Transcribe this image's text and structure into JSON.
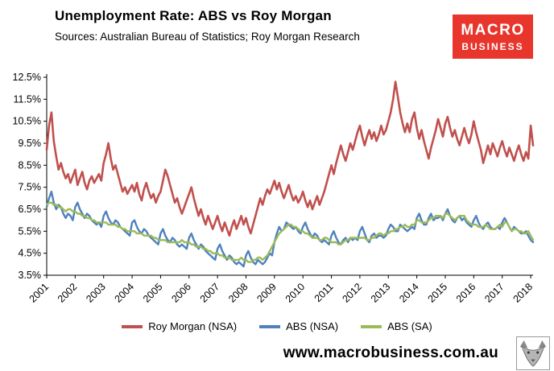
{
  "header": {
    "title": "Unemployment Rate: ABS vs Roy Morgan",
    "sources": "Sources: Australian Bureau of Statistics; Roy Morgan Research"
  },
  "logo": {
    "line1": "MACRO",
    "line2": "BUSINESS",
    "bg_color": "#e8362d",
    "text_color": "#ffffff"
  },
  "footer": {
    "url": "www.macrobusiness.com.au"
  },
  "chart_data": {
    "type": "line",
    "title": "Unemployment Rate: ABS vs Roy Morgan",
    "background": "#ffffff",
    "grid": false,
    "legend_position": "bottom",
    "ylim": [
      3.5,
      12.5
    ],
    "y_tick_values": [
      3.5,
      4.5,
      5.5,
      6.5,
      7.5,
      8.5,
      9.5,
      10.5,
      11.5,
      12.5
    ],
    "y_tick_labels": [
      "3.5%",
      "4.5%",
      "5.5%",
      "6.5%",
      "7.5%",
      "8.5%",
      "9.5%",
      "10.5%",
      "11.5%",
      "12.5%"
    ],
    "x_start_year": 2001,
    "x_months_per_point": 1,
    "x_tick_years": [
      2001,
      2002,
      2003,
      2004,
      2005,
      2006,
      2007,
      2008,
      2009,
      2010,
      2011,
      2012,
      2013,
      2014,
      2015,
      2016,
      2017,
      2018
    ],
    "series": [
      {
        "name": "Roy Morgan (NSA)",
        "color": "#c0504d",
        "values": [
          9.2,
          10.3,
          10.9,
          9.6,
          8.9,
          8.3,
          8.6,
          8.2,
          7.9,
          8.1,
          7.7,
          8.0,
          8.3,
          7.6,
          7.9,
          8.2,
          7.7,
          7.4,
          7.8,
          8.0,
          7.7,
          7.9,
          8.1,
          7.8,
          8.6,
          9.0,
          9.5,
          8.8,
          8.3,
          8.5,
          8.1,
          7.7,
          7.3,
          7.5,
          7.2,
          7.4,
          7.6,
          7.3,
          7.7,
          7.2,
          6.9,
          7.4,
          7.7,
          7.3,
          7.0,
          7.2,
          6.8,
          7.1,
          7.3,
          7.8,
          8.3,
          8.0,
          7.6,
          7.2,
          6.8,
          7.0,
          6.6,
          6.3,
          6.6,
          6.9,
          7.2,
          7.5,
          7.0,
          6.6,
          6.2,
          6.5,
          6.1,
          5.8,
          6.2,
          5.9,
          5.6,
          5.9,
          6.2,
          5.8,
          5.5,
          5.9,
          5.6,
          5.3,
          5.7,
          6.0,
          5.6,
          5.9,
          6.2,
          5.8,
          6.1,
          5.7,
          5.4,
          5.8,
          6.2,
          6.6,
          7.0,
          6.7,
          7.1,
          7.4,
          7.2,
          7.5,
          7.8,
          7.4,
          7.7,
          7.3,
          7.0,
          7.3,
          7.6,
          7.2,
          6.9,
          7.1,
          6.8,
          7.0,
          7.3,
          6.9,
          6.6,
          6.9,
          6.5,
          6.8,
          7.1,
          6.7,
          7.0,
          7.3,
          7.7,
          8.1,
          8.5,
          8.1,
          8.6,
          9.0,
          9.4,
          9.0,
          8.7,
          9.1,
          9.5,
          9.2,
          9.6,
          10.0,
          10.3,
          9.8,
          9.4,
          9.8,
          10.1,
          9.7,
          10.0,
          9.6,
          9.9,
          10.3,
          9.9,
          10.1,
          10.5,
          10.9,
          11.5,
          12.3,
          11.6,
          10.9,
          10.4,
          10.0,
          10.4,
          10.0,
          10.6,
          10.9,
          10.2,
          9.7,
          10.1,
          9.6,
          9.2,
          8.8,
          9.3,
          9.7,
          10.1,
          10.6,
          10.2,
          9.8,
          10.4,
          10.7,
          10.2,
          9.8,
          10.1,
          9.7,
          9.4,
          9.8,
          10.2,
          9.8,
          9.5,
          9.9,
          10.5,
          10.0,
          9.6,
          9.2,
          8.6,
          9.0,
          9.4,
          9.0,
          9.5,
          9.2,
          8.9,
          9.3,
          9.6,
          9.2,
          8.9,
          9.3,
          9.0,
          8.7,
          9.1,
          9.4,
          9.0,
          8.7,
          9.1,
          8.8,
          10.3,
          9.4
        ]
      },
      {
        "name": "ABS (NSA)",
        "color": "#4f81bd",
        "values": [
          6.6,
          7.0,
          7.3,
          6.8,
          6.5,
          6.7,
          6.6,
          6.3,
          6.1,
          6.3,
          6.2,
          6.0,
          6.6,
          6.8,
          6.5,
          6.3,
          6.1,
          6.3,
          6.2,
          6.0,
          5.9,
          5.8,
          5.9,
          5.7,
          6.2,
          6.4,
          6.1,
          5.9,
          5.8,
          6.0,
          5.9,
          5.7,
          5.6,
          5.5,
          5.4,
          5.3,
          5.9,
          6.0,
          5.7,
          5.5,
          5.4,
          5.6,
          5.5,
          5.3,
          5.2,
          5.1,
          5.0,
          4.9,
          5.4,
          5.6,
          5.3,
          5.1,
          5.0,
          5.2,
          5.1,
          4.9,
          4.8,
          4.9,
          4.8,
          4.7,
          5.2,
          5.4,
          5.1,
          4.9,
          4.7,
          4.9,
          4.8,
          4.6,
          4.5,
          4.4,
          4.3,
          4.2,
          4.7,
          4.9,
          4.6,
          4.4,
          4.2,
          4.4,
          4.3,
          4.1,
          4.0,
          4.1,
          4.0,
          3.9,
          4.4,
          4.6,
          4.3,
          4.1,
          4.0,
          4.2,
          4.1,
          4.0,
          4.1,
          4.3,
          4.5,
          4.4,
          5.0,
          5.4,
          5.7,
          5.5,
          5.6,
          5.9,
          5.8,
          5.7,
          5.6,
          5.7,
          5.5,
          5.4,
          5.7,
          5.9,
          5.6,
          5.4,
          5.2,
          5.4,
          5.3,
          5.1,
          5.0,
          5.1,
          5.0,
          4.9,
          5.3,
          5.5,
          5.2,
          5.0,
          4.9,
          5.1,
          5.2,
          5.0,
          5.2,
          5.1,
          5.2,
          5.1,
          5.5,
          5.7,
          5.4,
          5.1,
          5.0,
          5.3,
          5.4,
          5.2,
          5.3,
          5.3,
          5.2,
          5.3,
          5.6,
          5.8,
          5.7,
          5.5,
          5.5,
          5.8,
          5.7,
          5.6,
          5.5,
          5.6,
          5.7,
          5.6,
          6.1,
          6.3,
          6.0,
          5.8,
          5.8,
          6.1,
          6.3,
          6.0,
          6.1,
          6.1,
          6.2,
          6.0,
          6.3,
          6.5,
          6.2,
          6.0,
          5.9,
          6.1,
          6.2,
          6.0,
          6.1,
          5.9,
          5.8,
          5.7,
          6.0,
          6.2,
          5.9,
          5.7,
          5.6,
          5.8,
          5.9,
          5.7,
          5.6,
          5.6,
          5.7,
          5.6,
          5.9,
          6.1,
          5.9,
          5.7,
          5.5,
          5.7,
          5.6,
          5.5,
          5.4,
          5.4,
          5.5,
          5.3,
          5.1,
          5.0
        ]
      },
      {
        "name": "ABS (SA)",
        "color": "#9bbb59",
        "values": [
          6.7,
          6.8,
          6.8,
          6.7,
          6.7,
          6.6,
          6.6,
          6.5,
          6.4,
          6.5,
          6.5,
          6.4,
          6.4,
          6.3,
          6.3,
          6.2,
          6.2,
          6.1,
          6.1,
          6.0,
          6.0,
          5.9,
          5.9,
          5.9,
          5.9,
          5.9,
          5.8,
          5.8,
          5.8,
          5.8,
          5.7,
          5.7,
          5.6,
          5.6,
          5.5,
          5.5,
          5.5,
          5.5,
          5.4,
          5.4,
          5.4,
          5.3,
          5.3,
          5.3,
          5.3,
          5.2,
          5.2,
          5.1,
          5.1,
          5.1,
          5.1,
          5.0,
          5.0,
          5.0,
          5.0,
          5.0,
          5.0,
          5.1,
          5.0,
          5.0,
          5.0,
          4.9,
          4.9,
          4.8,
          4.8,
          4.8,
          4.7,
          4.7,
          4.6,
          4.6,
          4.5,
          4.5,
          4.5,
          4.4,
          4.4,
          4.3,
          4.3,
          4.3,
          4.2,
          4.2,
          4.2,
          4.2,
          4.3,
          4.2,
          4.2,
          4.1,
          4.1,
          4.2,
          4.2,
          4.3,
          4.3,
          4.2,
          4.3,
          4.4,
          4.6,
          4.8,
          5.0,
          5.2,
          5.4,
          5.5,
          5.6,
          5.7,
          5.8,
          5.8,
          5.7,
          5.7,
          5.6,
          5.5,
          5.5,
          5.4,
          5.4,
          5.3,
          5.2,
          5.2,
          5.2,
          5.1,
          5.1,
          5.2,
          5.2,
          5.1,
          5.0,
          5.0,
          5.0,
          4.9,
          4.9,
          5.0,
          5.1,
          5.1,
          5.2,
          5.2,
          5.2,
          5.2,
          5.2,
          5.2,
          5.2,
          5.1,
          5.1,
          5.2,
          5.2,
          5.3,
          5.4,
          5.4,
          5.3,
          5.4,
          5.4,
          5.5,
          5.5,
          5.6,
          5.6,
          5.7,
          5.7,
          5.8,
          5.7,
          5.7,
          5.8,
          5.8,
          6.0,
          6.0,
          5.9,
          5.9,
          5.9,
          6.0,
          6.1,
          6.1,
          6.2,
          6.2,
          6.2,
          6.1,
          6.3,
          6.3,
          6.2,
          6.1,
          6.0,
          6.1,
          6.2,
          6.2,
          6.2,
          6.0,
          5.9,
          5.8,
          5.8,
          5.8,
          5.7,
          5.7,
          5.7,
          5.8,
          5.7,
          5.6,
          5.6,
          5.6,
          5.7,
          5.8,
          5.7,
          5.9,
          5.9,
          5.7,
          5.5,
          5.6,
          5.6,
          5.5,
          5.5,
          5.4,
          5.4,
          5.5,
          5.3,
          5.1
        ]
      }
    ]
  }
}
